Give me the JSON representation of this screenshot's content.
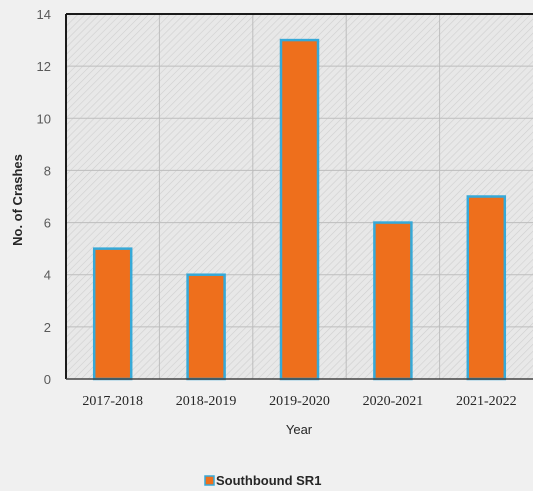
{
  "chart_data": {
    "type": "bar",
    "categories": [
      "2017-2018",
      "2018-2019",
      "2019-2020",
      "2020-2021",
      "2021-2022"
    ],
    "series": [
      {
        "name": "Southbound SR1",
        "values": [
          5,
          4,
          13,
          6,
          7
        ]
      }
    ],
    "xlabel": "Year",
    "ylabel": "No. of Crashes",
    "ylim": [
      0,
      14
    ],
    "yticks": [
      0,
      2,
      4,
      6,
      8,
      10,
      12,
      14
    ],
    "grid": true,
    "legend_position": "bottom",
    "colors": {
      "bar_fill": "#ee6f1c",
      "bar_outline": "#36a9d8",
      "plot_background": "#e8e8e8",
      "hatch": "#cdcdcd"
    }
  }
}
